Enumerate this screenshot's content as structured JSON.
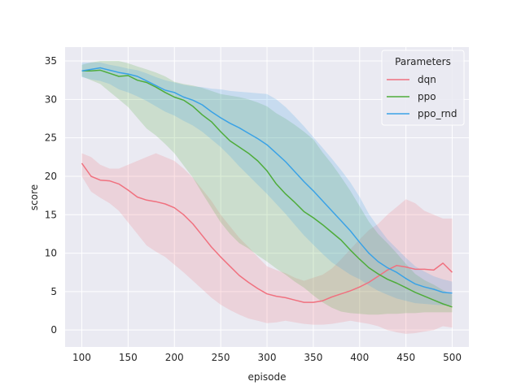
{
  "chart_data": {
    "type": "line",
    "title": "",
    "xlabel": "episode",
    "ylabel": "score",
    "xlim": [
      82,
      518
    ],
    "ylim": [
      -2.2,
      36.8
    ],
    "xticks": [
      100,
      150,
      200,
      250,
      300,
      350,
      400,
      450,
      500
    ],
    "yticks": [
      0,
      5,
      10,
      15,
      20,
      25,
      30,
      35
    ],
    "grid": true,
    "legend": {
      "title": "Parameters",
      "placement": "top-right"
    },
    "series": [
      {
        "name": "dqn",
        "color": "#f0717f",
        "x": [
          100,
          110,
          120,
          130,
          140,
          150,
          160,
          170,
          180,
          190,
          200,
          210,
          220,
          230,
          240,
          250,
          260,
          270,
          280,
          290,
          300,
          310,
          320,
          330,
          340,
          350,
          360,
          370,
          380,
          390,
          400,
          410,
          420,
          430,
          440,
          450,
          460,
          470,
          480,
          490,
          500
        ],
        "y": [
          21.7,
          20.0,
          19.5,
          19.4,
          19.0,
          18.2,
          17.3,
          16.9,
          16.7,
          16.4,
          15.9,
          15.0,
          13.8,
          12.3,
          10.8,
          9.5,
          8.3,
          7.1,
          6.2,
          5.4,
          4.7,
          4.4,
          4.2,
          3.9,
          3.6,
          3.6,
          3.8,
          4.3,
          4.7,
          5.1,
          5.6,
          6.2,
          7.0,
          7.8,
          8.4,
          8.2,
          7.9,
          7.9,
          7.8,
          8.7,
          7.5
        ],
        "lower": [
          20.0,
          18.0,
          17.2,
          16.5,
          15.5,
          14.0,
          12.5,
          11.0,
          10.2,
          9.5,
          8.5,
          7.5,
          6.4,
          5.3,
          4.2,
          3.3,
          2.6,
          2.0,
          1.5,
          1.2,
          0.9,
          1.0,
          1.2,
          1.0,
          0.8,
          0.7,
          0.7,
          0.8,
          1.0,
          1.2,
          1.0,
          0.8,
          0.5,
          0.0,
          -0.3,
          -0.5,
          -0.4,
          -0.2,
          0.0,
          0.5,
          0.3
        ],
        "upper": [
          23.0,
          22.5,
          21.5,
          21.0,
          21.0,
          21.5,
          22.0,
          22.5,
          23.0,
          22.5,
          22.0,
          21.0,
          19.8,
          18.3,
          16.8,
          15.0,
          13.5,
          12.0,
          10.8,
          9.5,
          8.3,
          7.8,
          7.4,
          6.8,
          6.4,
          6.8,
          7.2,
          8.0,
          9.2,
          10.5,
          11.8,
          13.0,
          13.8,
          15.0,
          16.0,
          17.0,
          16.5,
          15.5,
          15.0,
          14.5,
          14.5
        ]
      },
      {
        "name": "ppo",
        "color": "#4eac3a",
        "x": [
          100,
          110,
          120,
          130,
          140,
          150,
          160,
          170,
          180,
          190,
          200,
          210,
          220,
          230,
          240,
          250,
          260,
          270,
          280,
          290,
          300,
          310,
          320,
          330,
          340,
          350,
          360,
          370,
          380,
          390,
          400,
          410,
          420,
          430,
          440,
          450,
          460,
          470,
          480,
          490,
          500
        ],
        "y": [
          33.7,
          33.7,
          33.8,
          33.4,
          33.0,
          33.1,
          32.5,
          32.2,
          31.6,
          30.9,
          30.3,
          29.9,
          29.1,
          28.0,
          27.1,
          25.8,
          24.6,
          23.8,
          23.0,
          22.0,
          20.7,
          19.0,
          17.7,
          16.6,
          15.4,
          14.6,
          13.7,
          12.7,
          11.7,
          10.4,
          9.2,
          8.1,
          7.3,
          6.6,
          6.1,
          5.5,
          4.9,
          4.4,
          3.9,
          3.4,
          3.0
        ],
        "lower": [
          33.0,
          32.5,
          32.0,
          31.0,
          30.0,
          29.0,
          27.6,
          26.2,
          25.3,
          24.2,
          23.0,
          21.4,
          19.8,
          17.8,
          15.9,
          14.0,
          12.5,
          11.3,
          10.6,
          9.7,
          8.9,
          8.0,
          7.2,
          6.3,
          5.5,
          4.5,
          3.6,
          2.9,
          2.4,
          2.2,
          2.1,
          2.0,
          2.0,
          2.1,
          2.1,
          2.2,
          2.2,
          2.3,
          2.3,
          2.3,
          2.3
        ],
        "upper": [
          34.5,
          34.8,
          35.0,
          35.0,
          35.0,
          34.7,
          34.3,
          33.9,
          33.5,
          33.0,
          32.3,
          32.0,
          31.8,
          31.5,
          31.1,
          30.7,
          30.5,
          30.3,
          30.0,
          29.6,
          29.1,
          28.2,
          27.5,
          26.7,
          25.8,
          24.8,
          23.1,
          21.6,
          19.9,
          18.1,
          16.1,
          14.1,
          12.5,
          11.3,
          10.0,
          8.6,
          7.3,
          6.5,
          5.9,
          5.2,
          4.6
        ]
      },
      {
        "name": "ppo_rnd",
        "color": "#3aa2e6",
        "x": [
          100,
          110,
          120,
          130,
          140,
          150,
          160,
          170,
          180,
          190,
          200,
          210,
          220,
          230,
          240,
          250,
          260,
          270,
          280,
          290,
          300,
          310,
          320,
          330,
          340,
          350,
          360,
          370,
          380,
          390,
          400,
          410,
          420,
          430,
          440,
          450,
          460,
          470,
          480,
          490,
          500
        ],
        "y": [
          33.7,
          33.9,
          34.1,
          33.8,
          33.5,
          33.3,
          33.0,
          32.4,
          31.8,
          31.2,
          30.9,
          30.3,
          29.9,
          29.3,
          28.4,
          27.6,
          26.9,
          26.3,
          25.6,
          24.9,
          24.1,
          23.0,
          21.9,
          20.6,
          19.3,
          18.1,
          16.8,
          15.5,
          14.2,
          12.9,
          11.4,
          10.0,
          8.9,
          8.1,
          7.5,
          6.7,
          6.0,
          5.6,
          5.3,
          4.9,
          4.8
        ],
        "lower": [
          32.9,
          32.6,
          32.4,
          32.0,
          31.3,
          30.9,
          30.4,
          29.8,
          29.1,
          28.4,
          27.9,
          27.2,
          26.6,
          25.8,
          24.8,
          23.8,
          22.6,
          21.3,
          20.1,
          18.9,
          17.7,
          16.4,
          15.1,
          13.7,
          12.3,
          11.1,
          9.9,
          8.8,
          8.0,
          7.2,
          6.6,
          5.8,
          5.1,
          4.6,
          4.1,
          3.8,
          3.5,
          3.4,
          3.3,
          3.2,
          3.2
        ],
        "upper": [
          34.8,
          34.8,
          34.8,
          34.5,
          34.3,
          34.0,
          33.8,
          33.4,
          32.9,
          32.5,
          32.2,
          31.9,
          31.7,
          31.6,
          31.4,
          31.3,
          31.1,
          31.0,
          30.9,
          30.8,
          30.7,
          30.0,
          29.0,
          27.8,
          26.5,
          25.1,
          23.7,
          22.3,
          20.8,
          19.2,
          17.3,
          15.1,
          13.4,
          11.8,
          10.6,
          9.4,
          8.3,
          7.6,
          7.0,
          6.6,
          6.3
        ]
      }
    ]
  }
}
